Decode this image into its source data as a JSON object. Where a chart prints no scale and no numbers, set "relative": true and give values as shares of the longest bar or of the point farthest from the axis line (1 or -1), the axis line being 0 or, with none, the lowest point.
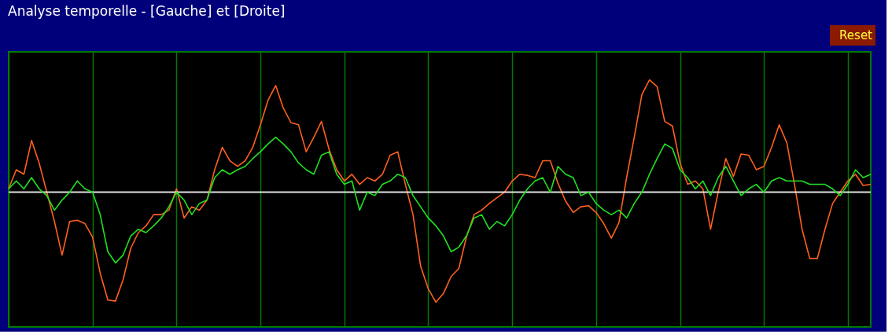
{
  "chart_data": {
    "type": "line",
    "title": "Analyse temporelle - [Gauche] et [Droite]",
    "annotations": [
      "Reset"
    ],
    "relative": true,
    "grid": true,
    "tick_labels": false,
    "categories": [
      null,
      null,
      null,
      null,
      null,
      null,
      null,
      null,
      null,
      null,
      null,
      null,
      null,
      null,
      null,
      null,
      null,
      null,
      null,
      null,
      null,
      null,
      null,
      null,
      null,
      null,
      null,
      null,
      null,
      null,
      null,
      null,
      null,
      null,
      null,
      null,
      null,
      null,
      null,
      null,
      null,
      null,
      null,
      null,
      null,
      null,
      null,
      null,
      null,
      null,
      null,
      null,
      null,
      null,
      null,
      null,
      null,
      null,
      null,
      null,
      null,
      null,
      null,
      null,
      null,
      null,
      null,
      null,
      null,
      null,
      null,
      null,
      null,
      null,
      null,
      null,
      null,
      null,
      null,
      null,
      null,
      null,
      null,
      null,
      null,
      null,
      null,
      null,
      null,
      null,
      null,
      null,
      null,
      null,
      null,
      null,
      null,
      null,
      null,
      null,
      null,
      null,
      null,
      null,
      null,
      null,
      null,
      null,
      null,
      null,
      null,
      null,
      null,
      null
    ],
    "series": [
      {
        "color": "#ff6020",
        "values": [
          0.03,
          0.2,
          0.16,
          0.46,
          0.26,
          0,
          -0.26,
          -0.56,
          -0.26,
          -0.25,
          -0.28,
          -0.4,
          -0.72,
          -0.96,
          -0.97,
          -0.78,
          -0.5,
          -0.36,
          -0.3,
          -0.2,
          -0.2,
          -0.16,
          0.03,
          -0.23,
          -0.13,
          -0.16,
          -0.07,
          0.2,
          0.4,
          0.28,
          0.23,
          0.28,
          0.4,
          0.6,
          0.82,
          0.95,
          0.75,
          0.62,
          0.6,
          0.36,
          0.49,
          0.63,
          0.38,
          0.2,
          0.1,
          0.16,
          0.07,
          0.13,
          0.1,
          0.16,
          0.33,
          0.36,
          0.07,
          -0.2,
          -0.66,
          -0.86,
          -0.98,
          -0.9,
          -0.75,
          -0.68,
          -0.4,
          -0.2,
          -0.16,
          -0.1,
          -0.05,
          0,
          0.1,
          0.16,
          0.15,
          0.13,
          0.28,
          0.28,
          0.08,
          -0.08,
          -0.18,
          -0.13,
          -0.12,
          -0.18,
          -0.28,
          -0.41,
          -0.27,
          0.13,
          0.49,
          0.87,
          1.0,
          0.94,
          0.63,
          0.59,
          0.26,
          0.07,
          0.1,
          0.03,
          -0.33,
          0,
          0.3,
          0.14,
          0.34,
          0.33,
          0.2,
          0.23,
          0.4,
          0.6,
          0.44,
          0.07,
          -0.33,
          -0.59,
          -0.59,
          -0.33,
          -0.1,
          0,
          0.1,
          0.16,
          0.06,
          0.07
        ]
      },
      {
        "color": "#20e020",
        "values": [
          0.03,
          0.1,
          0.03,
          0.13,
          0.03,
          -0.03,
          -0.16,
          -0.07,
          0,
          0.1,
          0.03,
          0,
          -0.2,
          -0.53,
          -0.63,
          -0.56,
          -0.39,
          -0.33,
          -0.36,
          -0.3,
          -0.23,
          -0.13,
          0,
          -0.07,
          -0.2,
          -0.1,
          -0.07,
          0.13,
          0.2,
          0.16,
          0.2,
          0.23,
          0.3,
          0.36,
          0.43,
          0.49,
          0.43,
          0.36,
          0.26,
          0.2,
          0.16,
          0.33,
          0.36,
          0.16,
          0.07,
          0.1,
          -0.16,
          0,
          -0.03,
          0.07,
          0.1,
          0.16,
          0.13,
          -0.03,
          -0.13,
          -0.23,
          -0.3,
          -0.39,
          -0.53,
          -0.49,
          -0.39,
          -0.23,
          -0.2,
          -0.33,
          -0.26,
          -0.3,
          -0.2,
          -0.07,
          0.03,
          0.1,
          0.13,
          0,
          0.23,
          0.16,
          0.13,
          -0.03,
          0,
          -0.1,
          -0.16,
          -0.2,
          -0.16,
          -0.23,
          -0.1,
          0,
          0.16,
          0.3,
          0.43,
          0.39,
          0.2,
          0.13,
          0.03,
          0.1,
          -0.03,
          0.13,
          0.23,
          0.1,
          -0.03,
          0.03,
          0.07,
          0,
          0.1,
          0.13,
          0.1,
          0.1,
          0.1,
          0.07,
          0.07,
          0.07,
          0.03,
          -0.03,
          0.07,
          0.2,
          0.13,
          0.16
        ]
      }
    ]
  }
}
